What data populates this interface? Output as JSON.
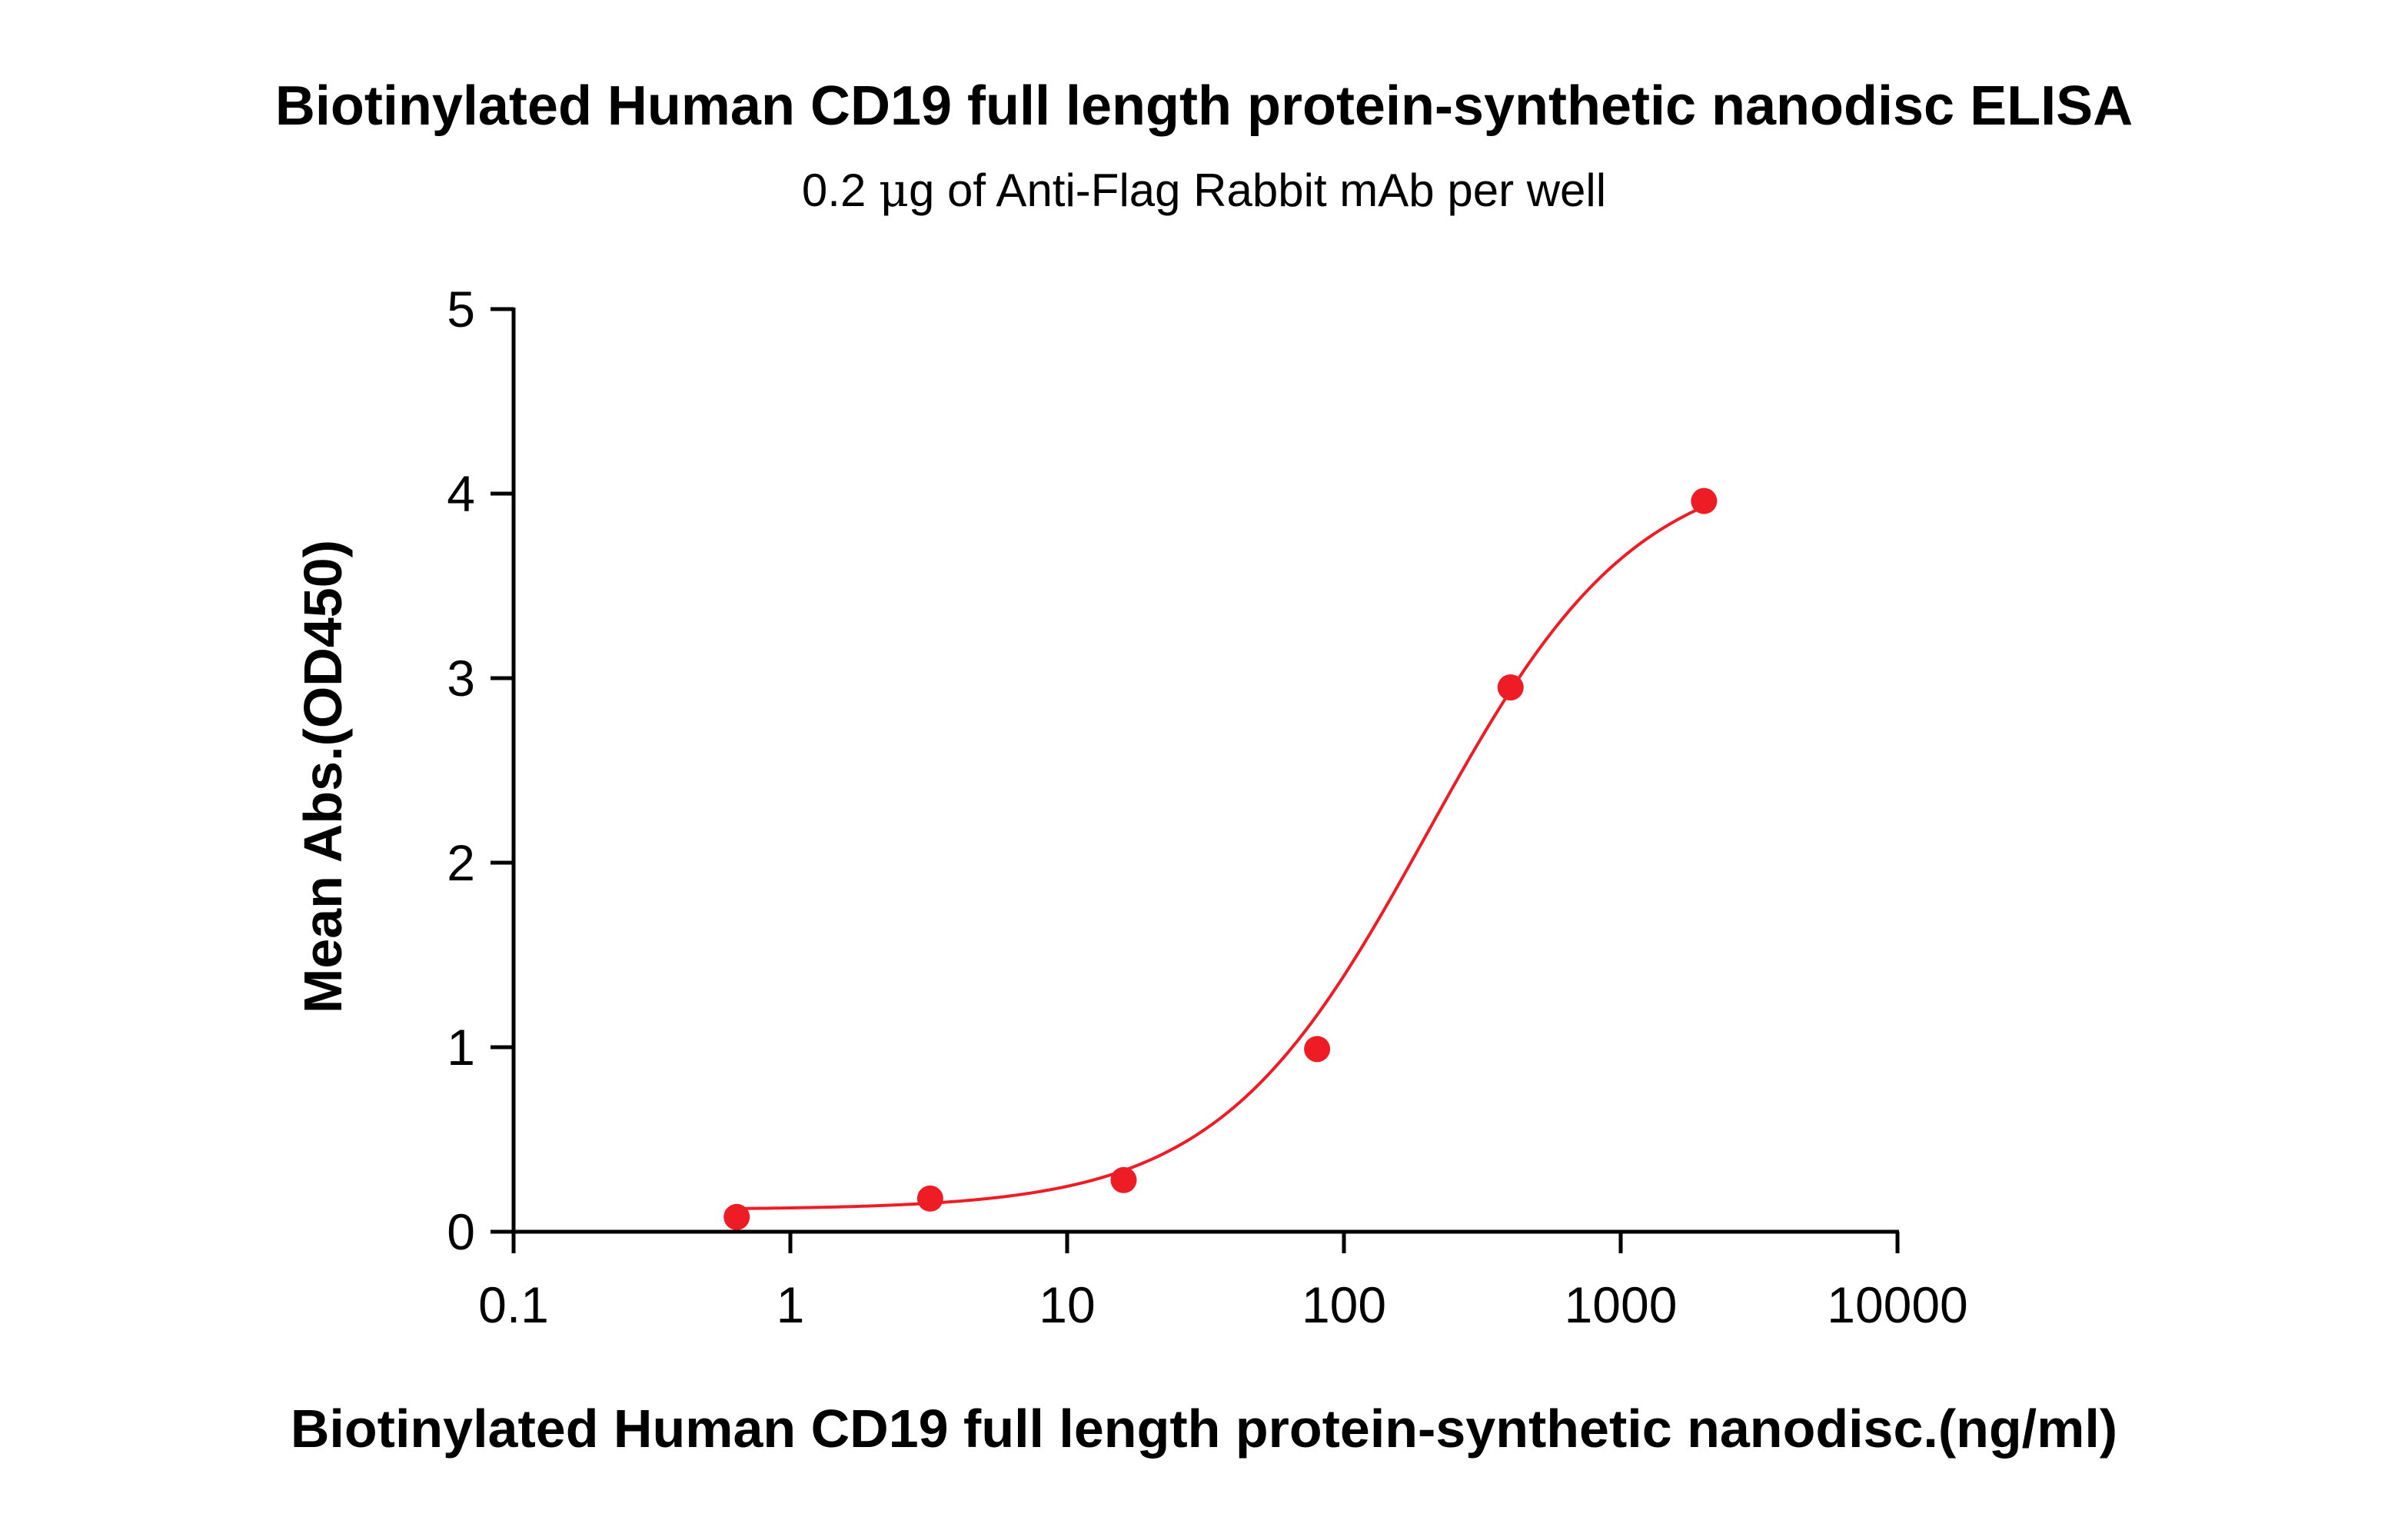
{
  "chart_data": {
    "type": "scatter",
    "title": "Biotinylated Human CD19 full length protein-synthetic nanodisc ELISA",
    "subtitle_prefix": "0.2 ",
    "subtitle_unit": "μ",
    "subtitle_suffix": "g of Anti-Flag Rabbit mAb per well",
    "xlabel": "Biotinylated Human CD19 full length protein-synthetic nanodisc.(ng/ml)",
    "ylabel": "Mean Abs.(OD450)",
    "xscale": "log",
    "xlim": [
      0.1,
      10000
    ],
    "ylim": [
      0,
      5
    ],
    "x_ticks": [
      0.1,
      1,
      10,
      100,
      1000,
      10000
    ],
    "x_tick_labels": [
      "0.1",
      "1",
      "10",
      "100",
      "1000",
      "10000"
    ],
    "y_ticks": [
      0,
      1,
      2,
      3,
      4,
      5
    ],
    "y_tick_labels": [
      "0",
      "1",
      "2",
      "3",
      "4",
      "5"
    ],
    "grid": false,
    "series": [
      {
        "name": "Biotinylated Human CD19 full length protein-synthetic nanodisc",
        "color": "#ee1c25",
        "x": [
          0.64,
          3.2,
          16,
          80,
          400,
          2000
        ],
        "y": [
          0.08,
          0.18,
          0.28,
          0.99,
          2.95,
          3.96
        ],
        "fit": {
          "model": "4PL",
          "bottom": 0.12,
          "top": 4.2,
          "ec50": 200,
          "hill": 1.15
        }
      }
    ]
  }
}
